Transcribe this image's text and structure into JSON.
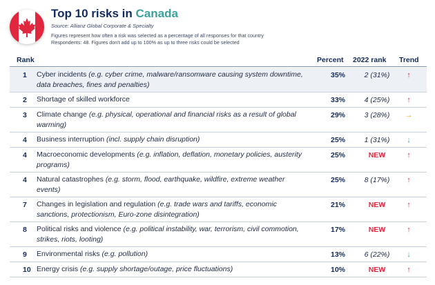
{
  "header": {
    "title": "Top 10 risks in",
    "country": "Canada",
    "source": "Source: Allianz Global Corporate & Specialty",
    "note_line1": "Figures represent how often a risk was selected as a percentage of all responses for that country",
    "note_line2": "Respondents: 48. Figures don't add up to 100% as up to three risks could be selected"
  },
  "columns": {
    "rank": "Rank",
    "percent": "Percent",
    "rank_2022": "2022 rank",
    "trend": "Trend"
  },
  "colors": {
    "navy": "#122b5c",
    "teal": "#3aa39a",
    "red": "#e0273e",
    "amber": "#f0a20a"
  },
  "rows": [
    {
      "rank": "1",
      "risk": "Cyber incidents ",
      "example": "(e.g. cyber crime, malware/ransomware causing system downtime, data breaches, fines and penalties)",
      "percent": "35%",
      "prev": "2 (31%)",
      "trend": "↑"
    },
    {
      "rank": "2",
      "risk": "Shortage of skilled workforce",
      "example": "",
      "percent": "33%",
      "prev": "4 (25%)",
      "trend": "↑"
    },
    {
      "rank": "3",
      "risk": "Climate change ",
      "example": "(e.g. physical, operational and financial risks as a result of global warming)",
      "percent": "29%",
      "prev": "3 (28%)",
      "trend": "→"
    },
    {
      "rank": "4",
      "risk": "Business interruption ",
      "example": "(incl. supply chain disruption)",
      "percent": "25%",
      "prev": "1 (31%)",
      "trend": "↓"
    },
    {
      "rank": "4",
      "risk": "Macroeconomic developments ",
      "example": "(e.g. inflation, deflation, monetary policies, austerity programs)",
      "percent": "25%",
      "prev": "NEW",
      "trend": "↑"
    },
    {
      "rank": "4",
      "risk": "Natural catastrophes ",
      "example": "(e.g. storm, flood, earthquake, wildfire, extreme weather events)",
      "percent": "25%",
      "prev": "8 (17%)",
      "trend": "↑"
    },
    {
      "rank": "7",
      "risk": "Changes in legislation and regulation ",
      "example": "(e.g. trade wars and tariffs, economic sanctions, protectionism, Euro-zone disintegration)",
      "percent": "21%",
      "prev": "NEW",
      "trend": "↑"
    },
    {
      "rank": "8",
      "risk": "Political risks and violence ",
      "example": "(e.g. political instability, war, terrorism, civil commotion, strikes, riots, looting)",
      "percent": "17%",
      "prev": "NEW",
      "trend": "↑"
    },
    {
      "rank": "9",
      "risk": "Environmental risks ",
      "example": "(e.g. pollution)",
      "percent": "13%",
      "prev": "6 (22%)",
      "trend": "↓"
    },
    {
      "rank": "10",
      "risk": "Energy crisis ",
      "example": "(e.g. supply shortage/outage, price fluctuations)",
      "percent": "10%",
      "prev": "NEW",
      "trend": "↑"
    }
  ]
}
